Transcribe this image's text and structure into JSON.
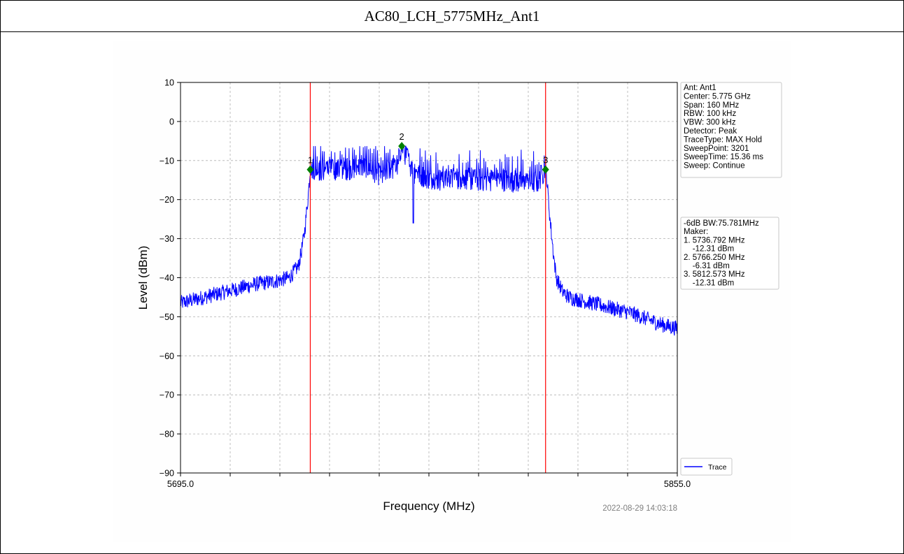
{
  "page_title": "AC80_LCH_5775MHz_Ant1",
  "chart_data": {
    "type": "line",
    "title": "",
    "xlabel": "Frequency (MHz)",
    "ylabel": "Level (dBm)",
    "xlim": [
      5695.0,
      5855.0
    ],
    "ylim": [
      -90,
      10
    ],
    "x_tick_labels": [
      "5695.0",
      "5855.0"
    ],
    "y_ticks": [
      10,
      0,
      -10,
      -20,
      -30,
      -40,
      -50,
      -60,
      -70,
      -80,
      -90
    ],
    "y_tick_labels": [
      "10",
      "0",
      "−10",
      "−20",
      "−30",
      "−40",
      "−50",
      "−60",
      "−70",
      "−80",
      "−90"
    ],
    "grid": true,
    "legend": {
      "position": "bottom-right",
      "entries": [
        "Trace"
      ]
    },
    "series": [
      {
        "name": "Trace",
        "color": "#0000ff",
        "x": [
          5695,
          5700,
          5705,
          5710,
          5715,
          5720,
          5725,
          5730,
          5733,
          5734,
          5735,
          5736,
          5736.79,
          5738,
          5740,
          5745,
          5750,
          5755,
          5758,
          5760,
          5761,
          5762,
          5765,
          5766.25,
          5770,
          5775,
          5780,
          5785,
          5790,
          5795,
          5800,
          5805,
          5810,
          5812.573,
          5813,
          5814,
          5815,
          5816,
          5818,
          5820,
          5825,
          5830,
          5835,
          5840,
          5845,
          5850,
          5855
        ],
        "y": [
          -46.5,
          -45.5,
          -44.5,
          -43.5,
          -42.5,
          -41.5,
          -41,
          -40,
          -37,
          -33,
          -28,
          -20,
          -12.3,
          -12,
          -12.5,
          -12.5,
          -12,
          -11.5,
          -13,
          -14,
          -13,
          -12,
          -12,
          -6.3,
          -13,
          -14.5,
          -15,
          -14.5,
          -15,
          -15,
          -15,
          -15.5,
          -15.5,
          -12.3,
          -15,
          -25,
          -33,
          -40,
          -43.5,
          -45,
          -46,
          -47,
          -48,
          -49,
          -50.5,
          -52,
          -53
        ]
      }
    ],
    "vertical_lines": {
      "color": "#ff0000",
      "x": [
        5736.792,
        5812.573
      ]
    },
    "markers": [
      {
        "label": "1",
        "x": 5736.792,
        "y": -12.31
      },
      {
        "label": "2",
        "x": 5766.25,
        "y": -6.31
      },
      {
        "label": "3",
        "x": 5812.573,
        "y": -12.31
      }
    ],
    "marker_color": "#008000",
    "settings_box": {
      "lines": [
        "Ant: Ant1",
        "Center: 5.775 GHz",
        "Span: 160 MHz",
        "RBW: 100 kHz",
        "VBW: 300 kHz",
        "Detector: Peak",
        "TraceType: MAX Hold",
        "SweepPoint: 3201",
        "SweepTime: 15.36 ms",
        "Sweep: Continue"
      ]
    },
    "result_box": {
      "lines": [
        "-6dB BW:75.781MHz",
        "Maker:",
        "1. 5736.792 MHz",
        "    -12.31 dBm",
        "2. 5766.250 MHz",
        "    -6.31 dBm",
        "3. 5812.573 MHz",
        "    -12.31 dBm"
      ]
    },
    "timestamp": "2022-08-29 14:03:18"
  }
}
